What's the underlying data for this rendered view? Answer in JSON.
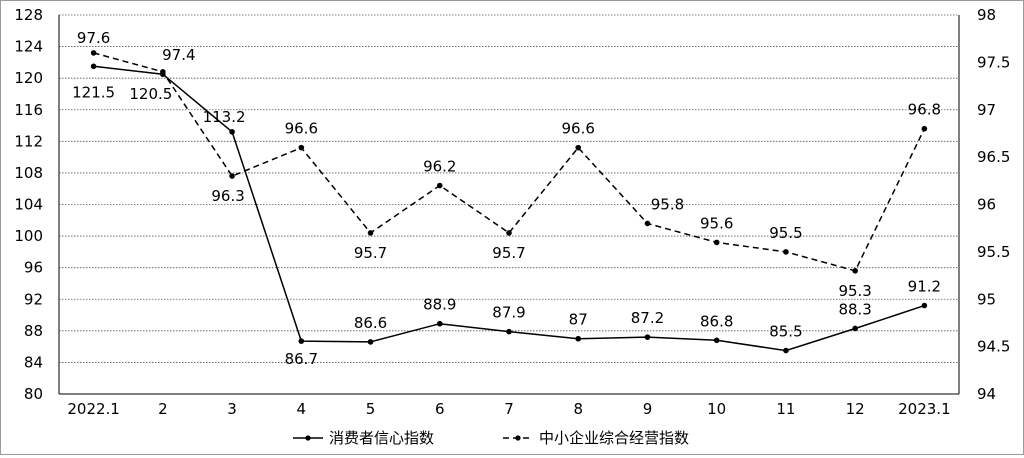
{
  "chart_data": {
    "type": "line",
    "categories": [
      "2022.1",
      "2",
      "3",
      "4",
      "5",
      "6",
      "7",
      "8",
      "9",
      "10",
      "11",
      "12",
      "2023.1"
    ],
    "series": [
      {
        "name": "消费者信心指数",
        "axis": "left",
        "style": "solid",
        "color": "#000000",
        "values": [
          121.5,
          120.5,
          113.2,
          86.7,
          86.6,
          88.9,
          87.9,
          87,
          87.2,
          86.8,
          85.5,
          88.3,
          91.2
        ],
        "labels": [
          "121.5",
          "120.5",
          "113.2",
          "86.7",
          "86.6",
          "88.9",
          "87.9",
          "87",
          "87.2",
          "86.8",
          "85.5",
          "88.3",
          "91.2"
        ]
      },
      {
        "name": "中小企业综合经营指数",
        "axis": "right",
        "style": "dashed",
        "color": "#000000",
        "values": [
          97.6,
          97.4,
          96.3,
          96.6,
          95.7,
          96.2,
          95.7,
          96.6,
          95.8,
          95.6,
          95.5,
          95.3,
          96.8
        ],
        "labels": [
          "97.6",
          "97.4",
          "96.3",
          "96.6",
          "95.7",
          "96.2",
          "95.7",
          "96.6",
          "95.8",
          "95.6",
          "95.5",
          "95.3",
          "96.8"
        ]
      }
    ],
    "y_left": {
      "ylim": [
        80,
        128
      ],
      "ticks": [
        "80",
        "84",
        "88",
        "92",
        "96",
        "100",
        "104",
        "108",
        "112",
        "116",
        "120",
        "124",
        "128"
      ]
    },
    "y_right": {
      "ylim": [
        94,
        98
      ],
      "ticks": [
        "94",
        "94.5",
        "95",
        "95.5",
        "96",
        "96.5",
        "97",
        "97.5",
        "98"
      ]
    },
    "title": "",
    "xlabel": "",
    "grid": "horizontal dotted",
    "legend": "bottom-center"
  }
}
